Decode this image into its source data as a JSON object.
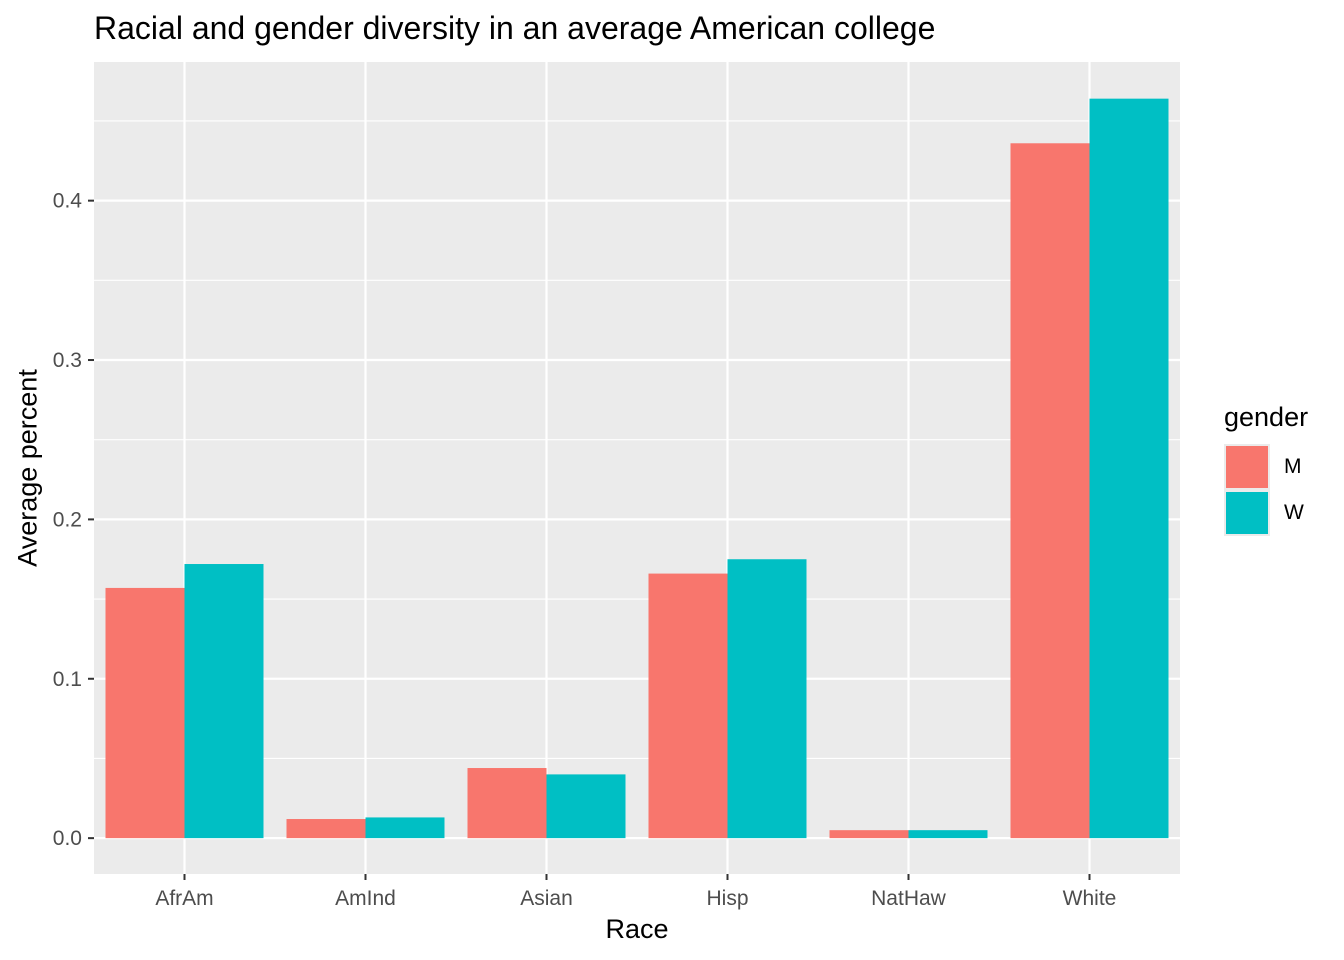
{
  "chart_data": {
    "type": "bar",
    "title": "Racial and gender diversity in an average American college",
    "xlabel": "Race",
    "ylabel": "Average percent",
    "categories": [
      "AfrAm",
      "AmInd",
      "Asian",
      "Hisp",
      "NatHaw",
      "White"
    ],
    "series": [
      {
        "name": "M",
        "color": "#F8766D",
        "values": [
          0.157,
          0.012,
          0.044,
          0.166,
          0.005,
          0.436
        ]
      },
      {
        "name": "W",
        "color": "#00BFC4",
        "values": [
          0.172,
          0.013,
          0.04,
          0.175,
          0.005,
          0.464
        ]
      }
    ],
    "y_ticks": [
      "0.0",
      "0.1",
      "0.2",
      "0.3",
      "0.4"
    ],
    "ylim": [
      -0.0225,
      0.487
    ],
    "grid": true,
    "legend": {
      "title": "gender",
      "placement": "right"
    }
  }
}
